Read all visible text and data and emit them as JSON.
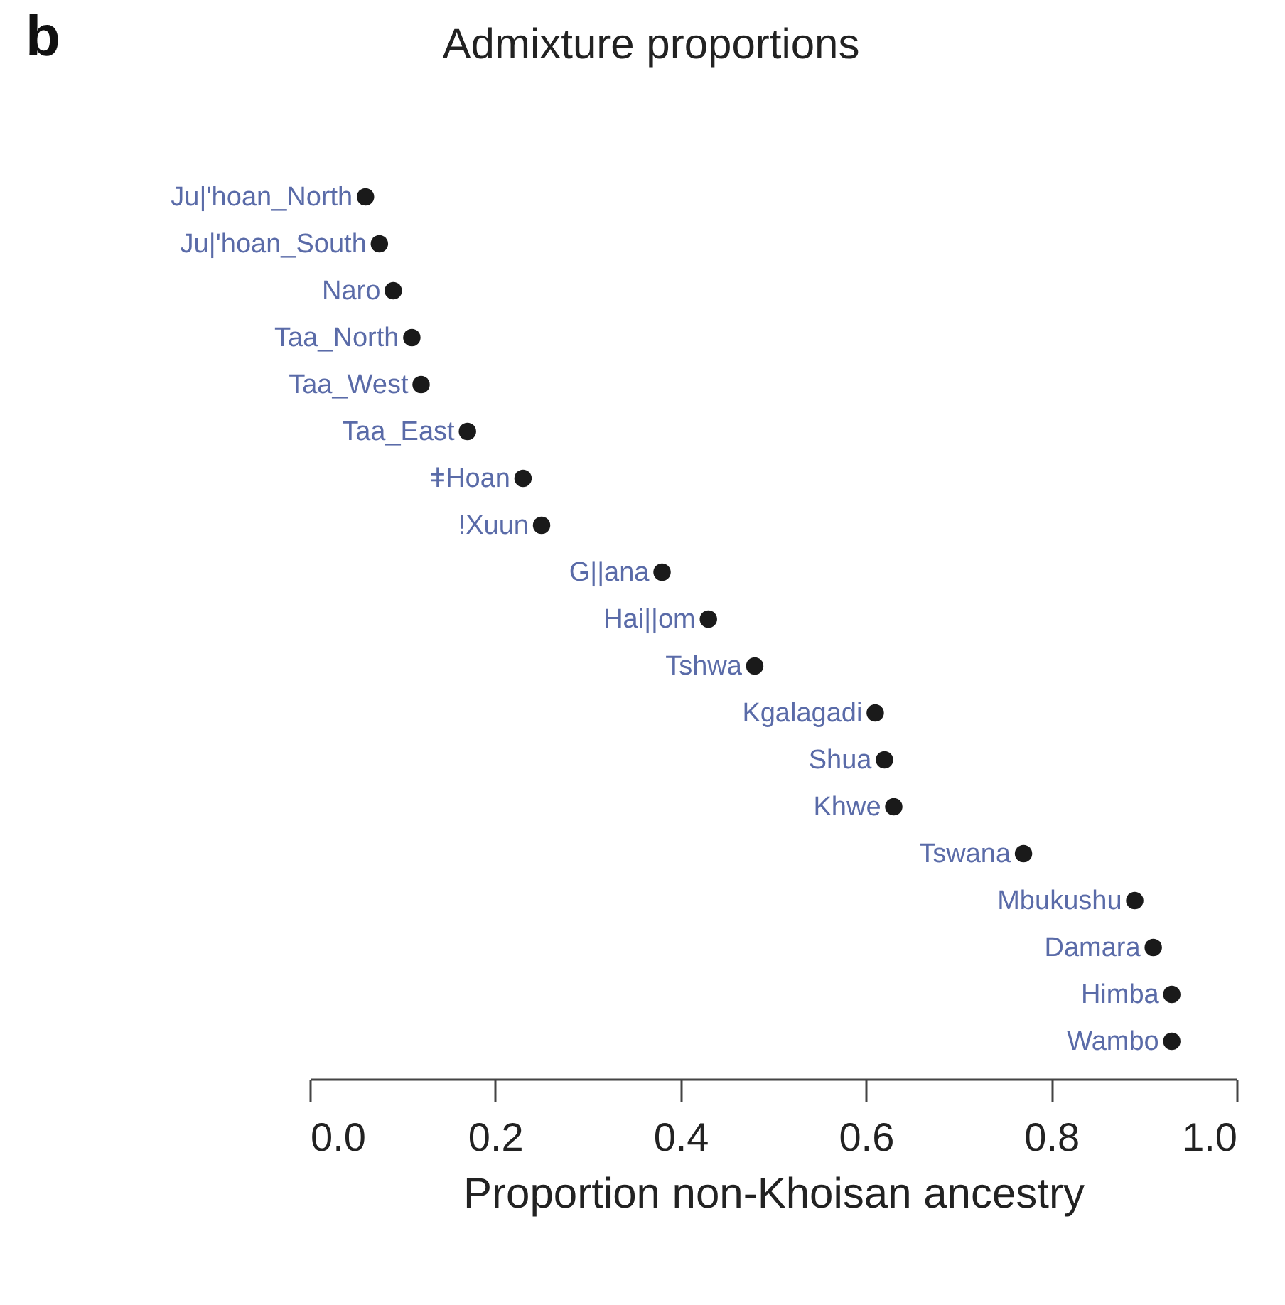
{
  "chart_data": {
    "type": "scatter",
    "orientation": "horizontal",
    "title": "Admixture proportions",
    "xlabel": "Proportion non-Khoisan ancestry",
    "annotations": [
      "b"
    ],
    "categories": [
      "Ju|'hoan_North",
      "Ju|'hoan_South",
      "Naro",
      "Taa_North",
      "Taa_West",
      "Taa_East",
      "ǂHoan",
      "!Xuun",
      "G||ana",
      "Hai||om",
      "Tshwa",
      "Kgalagadi",
      "Shua",
      "Khwe",
      "Tswana",
      "Mbukushu",
      "Damara",
      "Himba",
      "Wambo"
    ],
    "values": [
      0.06,
      0.075,
      0.09,
      0.11,
      0.12,
      0.17,
      0.23,
      0.25,
      0.38,
      0.43,
      0.48,
      0.61,
      0.62,
      0.63,
      0.77,
      0.89,
      0.91,
      0.93,
      0.93
    ],
    "color": "#1a1a1a",
    "marker": "circle",
    "xlim": [
      0,
      1
    ],
    "xticks": [
      {
        "value": 0,
        "label": "0.0"
      },
      0.2,
      0.4,
      0.6,
      0.8,
      {
        "value": 1,
        "label": "1.0"
      }
    ],
    "grid": false,
    "tick_labels": "x"
  }
}
